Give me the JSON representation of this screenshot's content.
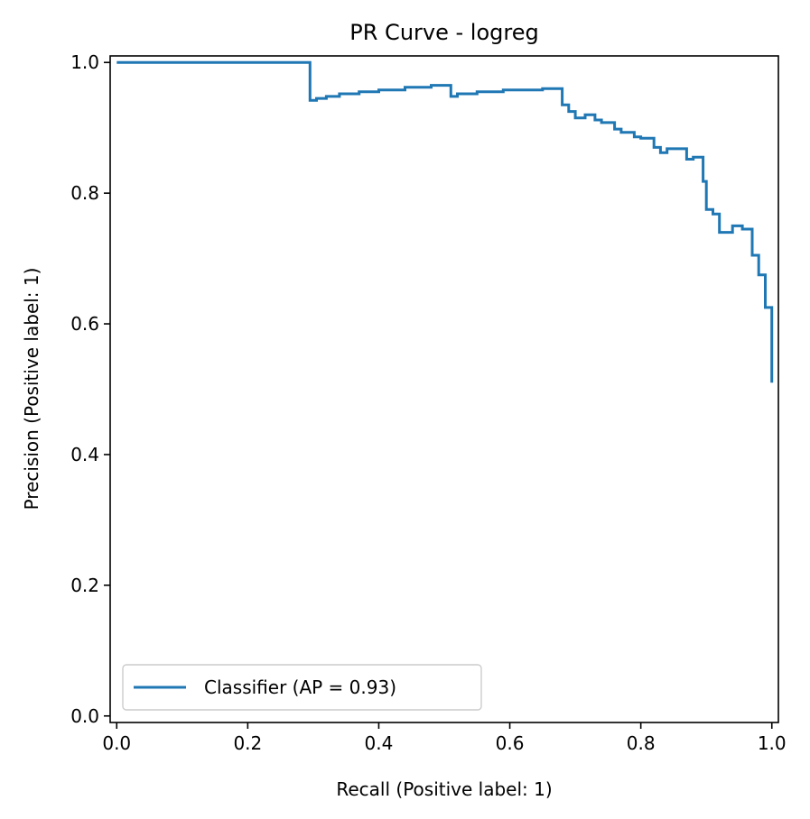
{
  "chart_data": {
    "type": "line",
    "title": "PR Curve - logreg",
    "xlabel": "Recall (Positive label: 1)",
    "ylabel": "Precision (Positive label: 1)",
    "xlim": [
      -0.01,
      1.01
    ],
    "ylim": [
      -0.01,
      1.01
    ],
    "xticks": [
      0.0,
      0.2,
      0.4,
      0.6,
      0.8,
      1.0
    ],
    "yticks": [
      0.0,
      0.2,
      0.4,
      0.6,
      0.8,
      1.0
    ],
    "xtick_labels": [
      "0.0",
      "0.2",
      "0.4",
      "0.6",
      "0.8",
      "1.0"
    ],
    "ytick_labels": [
      "0.0",
      "0.2",
      "0.4",
      "0.6",
      "0.8",
      "1.0"
    ],
    "grid": false,
    "legend_position": "lower-left",
    "series": [
      {
        "name": "Classifier (AP = 0.93)",
        "color": "#1f77b4",
        "drawstyle": "steps-post",
        "points": [
          [
            1.0,
            0.51
          ],
          [
            1.0,
            0.625
          ],
          [
            0.99,
            0.625
          ],
          [
            0.99,
            0.675
          ],
          [
            0.98,
            0.675
          ],
          [
            0.98,
            0.705
          ],
          [
            0.97,
            0.705
          ],
          [
            0.97,
            0.745
          ],
          [
            0.955,
            0.745
          ],
          [
            0.955,
            0.75
          ],
          [
            0.94,
            0.75
          ],
          [
            0.94,
            0.74
          ],
          [
            0.92,
            0.74
          ],
          [
            0.92,
            0.768
          ],
          [
            0.91,
            0.768
          ],
          [
            0.91,
            0.775
          ],
          [
            0.9,
            0.775
          ],
          [
            0.9,
            0.818
          ],
          [
            0.895,
            0.818
          ],
          [
            0.895,
            0.855
          ],
          [
            0.88,
            0.855
          ],
          [
            0.88,
            0.852
          ],
          [
            0.87,
            0.852
          ],
          [
            0.87,
            0.868
          ],
          [
            0.84,
            0.868
          ],
          [
            0.84,
            0.862
          ],
          [
            0.83,
            0.862
          ],
          [
            0.83,
            0.87
          ],
          [
            0.82,
            0.87
          ],
          [
            0.82,
            0.884
          ],
          [
            0.8,
            0.884
          ],
          [
            0.8,
            0.886
          ],
          [
            0.79,
            0.886
          ],
          [
            0.79,
            0.893
          ],
          [
            0.77,
            0.893
          ],
          [
            0.77,
            0.898
          ],
          [
            0.76,
            0.898
          ],
          [
            0.76,
            0.908
          ],
          [
            0.74,
            0.908
          ],
          [
            0.74,
            0.912
          ],
          [
            0.73,
            0.912
          ],
          [
            0.73,
            0.92
          ],
          [
            0.715,
            0.92
          ],
          [
            0.715,
            0.915
          ],
          [
            0.7,
            0.915
          ],
          [
            0.7,
            0.925
          ],
          [
            0.69,
            0.925
          ],
          [
            0.69,
            0.935
          ],
          [
            0.68,
            0.935
          ],
          [
            0.68,
            0.96
          ],
          [
            0.65,
            0.96
          ],
          [
            0.65,
            0.958
          ],
          [
            0.59,
            0.958
          ],
          [
            0.59,
            0.955
          ],
          [
            0.55,
            0.955
          ],
          [
            0.55,
            0.952
          ],
          [
            0.52,
            0.952
          ],
          [
            0.52,
            0.948
          ],
          [
            0.51,
            0.948
          ],
          [
            0.51,
            0.965
          ],
          [
            0.48,
            0.965
          ],
          [
            0.48,
            0.962
          ],
          [
            0.44,
            0.962
          ],
          [
            0.44,
            0.958
          ],
          [
            0.4,
            0.958
          ],
          [
            0.4,
            0.955
          ],
          [
            0.37,
            0.955
          ],
          [
            0.37,
            0.952
          ],
          [
            0.34,
            0.952
          ],
          [
            0.34,
            0.948
          ],
          [
            0.32,
            0.948
          ],
          [
            0.32,
            0.945
          ],
          [
            0.305,
            0.945
          ],
          [
            0.305,
            0.942
          ],
          [
            0.295,
            0.942
          ],
          [
            0.295,
            1.0
          ],
          [
            0.0,
            1.0
          ]
        ]
      }
    ]
  }
}
